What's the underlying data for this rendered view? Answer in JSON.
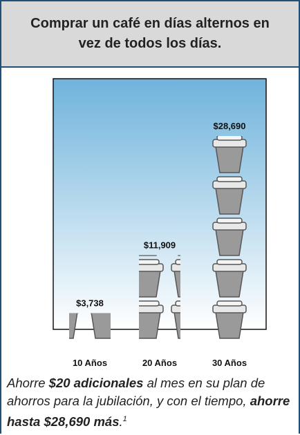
{
  "chart_data": {
    "type": "pictograph",
    "title": "Comprar un café en días alternos en vez de todos los días.",
    "categories": [
      "10 Años",
      "20 Años",
      "30 Años"
    ],
    "values": [
      3738,
      11909,
      28690
    ],
    "value_labels": [
      "$3,738",
      "$11,909",
      "$28,690"
    ],
    "color": "#a6a6a6"
  },
  "footer": {
    "parts": [
      "Ahorre ",
      "$20 adicionales",
      " al mes en su plan de ahorros para la jubilación, y con el tiempo, ",
      "ahorre hasta $28,690 más",
      ".",
      "1"
    ]
  }
}
